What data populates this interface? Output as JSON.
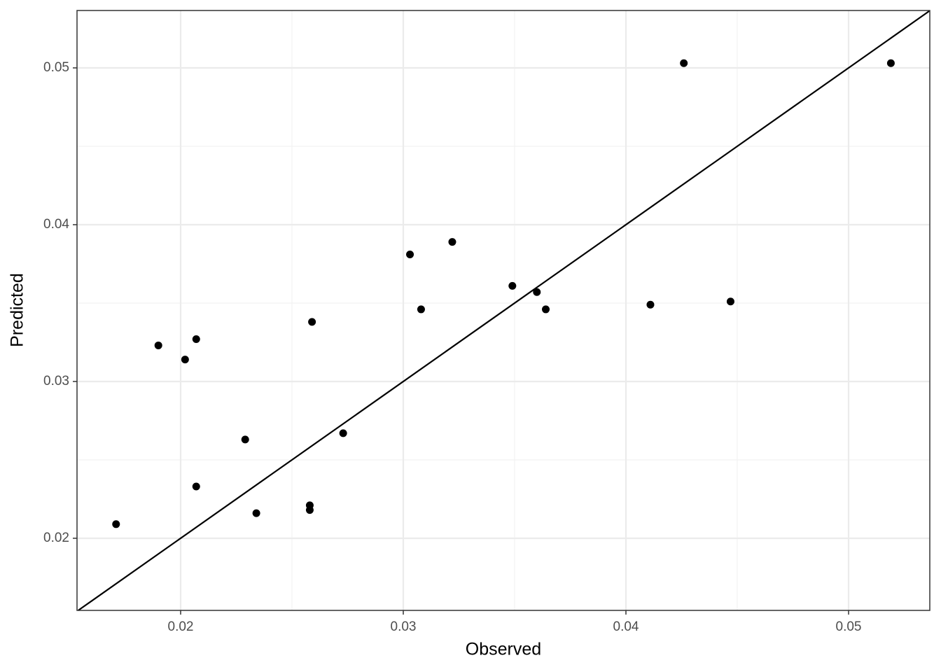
{
  "chart_data": {
    "type": "scatter",
    "x_label": "Observed",
    "y_label": "Predicted",
    "x": [
      0.0171,
      0.019,
      0.0202,
      0.0207,
      0.0207,
      0.0229,
      0.0234,
      0.0258,
      0.0258,
      0.0259,
      0.0273,
      0.0303,
      0.0308,
      0.0322,
      0.0349,
      0.036,
      0.0364,
      0.0411,
      0.0426,
      0.0447,
      0.0519
    ],
    "values": [
      0.0209,
      0.0323,
      0.0314,
      0.0327,
      0.0233,
      0.0263,
      0.0216,
      0.0221,
      0.0218,
      0.0338,
      0.0267,
      0.0381,
      0.0346,
      0.0389,
      0.0361,
      0.0357,
      0.0346,
      0.0349,
      0.0503,
      0.0351,
      0.0503
    ],
    "color": "#000000",
    "xlim": [
      0.015346,
      0.053648
    ],
    "ylim": [
      0.0154,
      0.05366
    ],
    "xticks": [
      0.02,
      0.03,
      0.04,
      0.05
    ],
    "yticks": [
      0.02,
      0.03,
      0.04,
      0.05
    ],
    "minor_xticks": [
      0.025,
      0.035,
      0.045
    ],
    "minor_yticks": [
      0.025,
      0.035,
      0.045
    ],
    "grid": true,
    "identity_line": true
  }
}
